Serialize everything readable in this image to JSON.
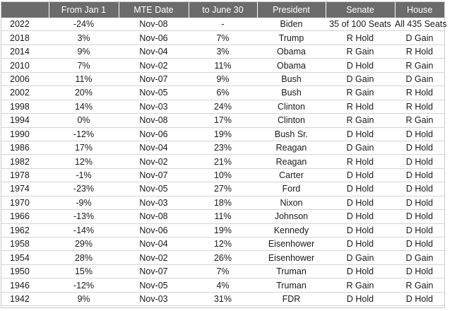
{
  "table": {
    "headers": [
      "",
      "From Jan 1",
      "MTE Date",
      "to June 30",
      "President",
      "Senate",
      "House"
    ],
    "rows": [
      [
        "2022",
        "-24%",
        "Nov-08",
        "-",
        "Biden",
        "35 of 100 Seats",
        "All 435 Seats"
      ],
      [
        "2018",
        "3%",
        "Nov-06",
        "7%",
        "Trump",
        "R Hold",
        "D Gain"
      ],
      [
        "2014",
        "9%",
        "Nov-04",
        "3%",
        "Obama",
        "R Gain",
        "R Hold"
      ],
      [
        "2010",
        "7%",
        "Nov-02",
        "11%",
        "Obama",
        "D Hold",
        "R Gain"
      ],
      [
        "2006",
        "11%",
        "Nov-07",
        "9%",
        "Bush",
        "D Gain",
        "D Gain"
      ],
      [
        "2002",
        "20%",
        "Nov-05",
        "6%",
        "Bush",
        "R Gain",
        "R Hold"
      ],
      [
        "1998",
        "14%",
        "Nov-03",
        "24%",
        "Clinton",
        "R Hold",
        "R Hold"
      ],
      [
        "1994",
        "0%",
        "Nov-08",
        "17%",
        "Clinton",
        "R Gain",
        "R Gain"
      ],
      [
        "1990",
        "-12%",
        "Nov-06",
        "19%",
        "Bush Sr.",
        "D Hold",
        "D Hold"
      ],
      [
        "1986",
        "17%",
        "Nov-04",
        "23%",
        "Reagan",
        "D Gain",
        "D Hold"
      ],
      [
        "1982",
        "12%",
        "Nov-02",
        "21%",
        "Reagan",
        "R Hold",
        "D Hold"
      ],
      [
        "1978",
        "-1%",
        "Nov-07",
        "10%",
        "Carter",
        "D Hold",
        "D Hold"
      ],
      [
        "1974",
        "-23%",
        "Nov-05",
        "27%",
        "Ford",
        "D Hold",
        "D Hold"
      ],
      [
        "1970",
        "-9%",
        "Nov-03",
        "18%",
        "Nixon",
        "D Hold",
        "D Hold"
      ],
      [
        "1966",
        "-13%",
        "Nov-08",
        "11%",
        "Johnson",
        "D Hold",
        "D Hold"
      ],
      [
        "1962",
        "-14%",
        "Nov-06",
        "19%",
        "Kennedy",
        "D Hold",
        "D Hold"
      ],
      [
        "1958",
        "29%",
        "Nov-04",
        "12%",
        "Eisenhower",
        "D Hold",
        "D Hold"
      ],
      [
        "1954",
        "28%",
        "Nov-02",
        "26%",
        "Eisenhower",
        "D Gain",
        "D Gain"
      ],
      [
        "1950",
        "15%",
        "Nov-07",
        "7%",
        "Truman",
        "D Hold",
        "D Hold"
      ],
      [
        "1946",
        "-12%",
        "Nov-05",
        "4%",
        "Truman",
        "R Gain",
        "R Gain"
      ],
      [
        "1942",
        "9%",
        "Nov-03",
        "31%",
        "FDR",
        "D Hold",
        "D Hold"
      ]
    ]
  }
}
